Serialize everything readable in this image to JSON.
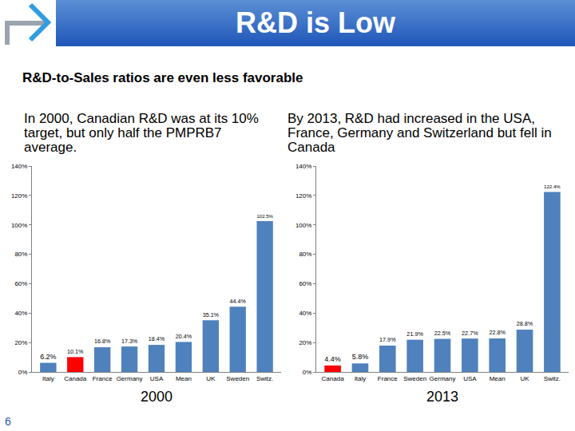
{
  "slide": {
    "title": "R&D is Low",
    "subtitle": "R&D-to-Sales ratios are even less favorable",
    "page_number": "6"
  },
  "chart_data": [
    {
      "type": "bar",
      "title": "In 2000, Canadian R&D was at its 10% target, but only half the PMPRB7 average.",
      "x_label": "2000",
      "categories": [
        "Italy",
        "Canada",
        "France",
        "Germany",
        "USA",
        "Mean",
        "UK",
        "Sweden",
        "Switz."
      ],
      "values": [
        6.2,
        10.1,
        16.8,
        17.3,
        18.4,
        20.4,
        35.1,
        44.4,
        102.5
      ],
      "value_labels": [
        "6.2%",
        "10.1%",
        "16.8%",
        "17.3%",
        "18.4%",
        "20.4%",
        "35.1%",
        "44.4%",
        "102.5%"
      ],
      "colors": [
        "#4f81bd",
        "#ff0000",
        "#4f81bd",
        "#4f81bd",
        "#4f81bd",
        "#4f81bd",
        "#4f81bd",
        "#4f81bd",
        "#4f81bd"
      ],
      "data_labels": true,
      "grid": false,
      "ylim": [
        0,
        140
      ],
      "yticks": [
        {
          "value": 0,
          "label": "0%"
        },
        {
          "value": 20,
          "label": "20%"
        },
        {
          "value": 40,
          "label": "40%"
        },
        {
          "value": 60,
          "label": "60%"
        },
        {
          "value": 80,
          "label": "80%"
        },
        {
          "value": 100,
          "label": "100%"
        },
        {
          "value": 120,
          "label": "120%"
        },
        {
          "value": 140,
          "label": "140%"
        }
      ]
    },
    {
      "type": "bar",
      "title": "By 2013, R&D had increased in the USA, France, Germany and Switzerland but fell in Canada",
      "x_label": "2013",
      "categories": [
        "Canada",
        "Italy",
        "France",
        "Sweden",
        "Germany",
        "USA",
        "Mean",
        "UK",
        "Switz."
      ],
      "values": [
        4.4,
        5.8,
        17.9,
        21.9,
        22.5,
        22.7,
        22.8,
        28.8,
        122.4
      ],
      "value_labels": [
        "4.4%",
        "5.8%",
        "17.9%",
        "21.9%",
        "22.5%",
        "22.7%",
        "22.8%",
        "28.8%",
        "122.4%"
      ],
      "colors": [
        "#ff0000",
        "#4f81bd",
        "#4f81bd",
        "#4f81bd",
        "#4f81bd",
        "#4f81bd",
        "#4f81bd",
        "#4f81bd",
        "#4f81bd"
      ],
      "data_labels": true,
      "grid": false,
      "ylim": [
        0,
        140
      ],
      "yticks": [
        {
          "value": 0,
          "label": "0%"
        },
        {
          "value": 20,
          "label": "20%"
        },
        {
          "value": 40,
          "label": "40%"
        },
        {
          "value": 60,
          "label": "60%"
        },
        {
          "value": 80,
          "label": "80%"
        },
        {
          "value": 100,
          "label": "100%"
        },
        {
          "value": 120,
          "label": "120%"
        },
        {
          "value": 140,
          "label": "140%"
        }
      ]
    }
  ]
}
